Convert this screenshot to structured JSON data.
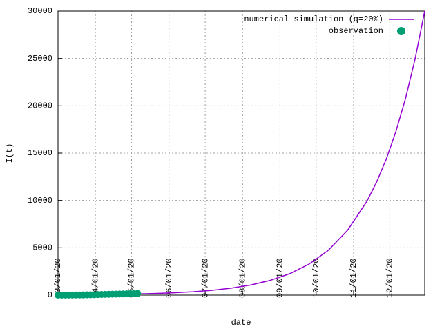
{
  "chart_data": {
    "type": "line",
    "ylabel": "I(t)",
    "xlabel": "date",
    "xlim": [
      0,
      304
    ],
    "ylim": [
      0,
      30000
    ],
    "xticks": [
      {
        "value": 0,
        "label": "03/01/20"
      },
      {
        "value": 31,
        "label": "04/01/20"
      },
      {
        "value": 61,
        "label": "05/01/20"
      },
      {
        "value": 92,
        "label": "06/01/20"
      },
      {
        "value": 122,
        "label": "07/01/20"
      },
      {
        "value": 153,
        "label": "08/01/20"
      },
      {
        "value": 184,
        "label": "09/01/20"
      },
      {
        "value": 214,
        "label": "10/01/20"
      },
      {
        "value": 245,
        "label": "11/01/20"
      },
      {
        "value": 275,
        "label": "12/01/20"
      }
    ],
    "yticks": [
      0,
      5000,
      10000,
      15000,
      20000,
      25000,
      30000
    ],
    "grid": true,
    "legend": "top-right",
    "series": [
      {
        "name": "numerical simulation (q=20%)",
        "color": "#9400d3",
        "kind": "line",
        "x": [
          0,
          16,
          32,
          48,
          64,
          80,
          96,
          112,
          128,
          144,
          160,
          176,
          192,
          208,
          224,
          240,
          256,
          264,
          272,
          280,
          288,
          296,
          304
        ],
        "values": [
          27,
          39,
          56,
          81,
          117,
          170,
          246,
          355,
          514,
          744,
          1077,
          1559,
          2257,
          3266,
          4726,
          6840,
          9898,
          11910,
          14324,
          17240,
          20730,
          24940,
          30000
        ]
      },
      {
        "name": "observation",
        "color": "#009e73",
        "kind": "scatter",
        "x": [
          0,
          3,
          6,
          9,
          12,
          15,
          18,
          21,
          24,
          27,
          30,
          33,
          36,
          39,
          42,
          45,
          48,
          51,
          54,
          57,
          60,
          63,
          66
        ],
        "values": [
          0,
          2,
          5,
          7,
          10,
          14,
          18,
          25,
          32,
          40,
          50,
          60,
          70,
          80,
          90,
          100,
          110,
          120,
          130,
          140,
          150,
          160,
          170
        ]
      }
    ]
  }
}
